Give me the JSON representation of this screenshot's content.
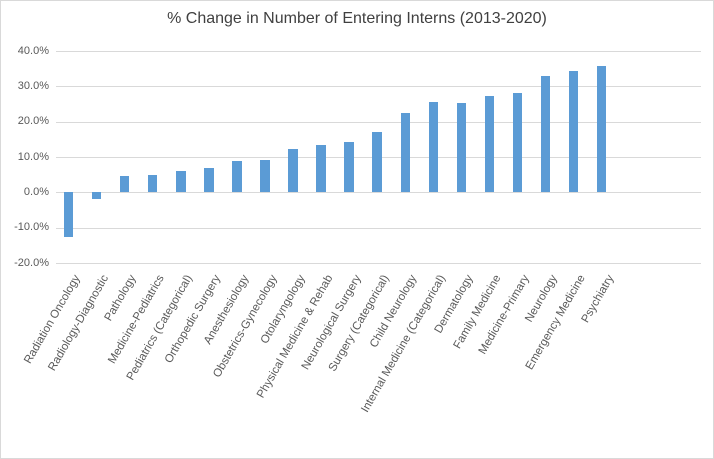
{
  "chart_data": {
    "type": "bar",
    "title": "% Change in Number of Entering Interns (2013-2020)",
    "xlabel": "",
    "ylabel": "",
    "categories": [
      "Radiation Oncology",
      "Radiology-Diagnostic",
      "Pathology",
      "Medicine-Pediatrics",
      "Pediatrics (Categorical)",
      "Orthopedic Surgery",
      "Anesthesiology",
      "Obstetrics-Gynecology",
      "Otolaryngology",
      "Physical Medicine & Rehab",
      "Neurological Surgery",
      "Surgery (Categorical)",
      "Child Neurology",
      "Internal Medicine (Categorical)",
      "Dermatology",
      "Family Medicine",
      "Medicine-Primary",
      "Neurology",
      "Emergency Medicine",
      "Psychiatry"
    ],
    "values": [
      -12.7,
      -2.0,
      4.5,
      5.0,
      6.1,
      6.8,
      9.0,
      9.3,
      12.4,
      13.4,
      14.4,
      17.0,
      22.5,
      25.5,
      25.3,
      27.3,
      28.0,
      33.0,
      34.3,
      35.7
    ],
    "value_unit": "percent",
    "ylim": [
      -20,
      40
    ],
    "ytick_values": [
      40,
      30,
      20,
      10,
      0,
      -10,
      -20
    ],
    "ytick_labels": [
      "40.0%",
      "30.0%",
      "20.0%",
      "10.0%",
      "0.0%",
      "-10.0%",
      "-20.0%"
    ],
    "grid": true,
    "legend": "none",
    "bar_color": "#5B9BD5",
    "gridline_color": "#D9D9D9",
    "axis_label_color": "#595959",
    "title_color": "#404040",
    "background_color": "#FFFFFF",
    "border_color": "#D9D9D9"
  }
}
